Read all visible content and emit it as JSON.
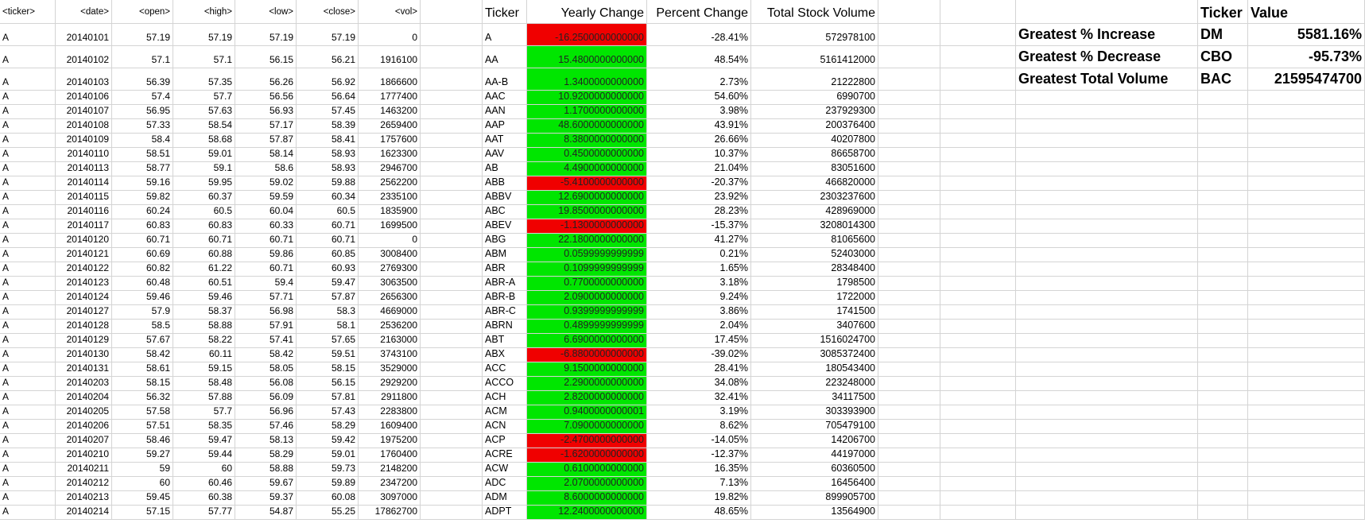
{
  "headers": {
    "ticker": "<ticker>",
    "date": "<date>",
    "open": "<open>",
    "high": "<high>",
    "low": "<low>",
    "close": "<close>",
    "vol": "<vol>",
    "s_ticker": "Ticker",
    "s_yearly": "Yearly Change",
    "s_percent": "Percent Change",
    "s_total": "Total Stock Volume",
    "g_ticker": "Ticker",
    "g_value": "Value"
  },
  "greatest": [
    {
      "label": "Greatest % Increase",
      "ticker": "DM",
      "value": "5581.16%"
    },
    {
      "label": "Greatest % Decrease",
      "ticker": "CBO",
      "value": "-95.73%"
    },
    {
      "label": "Greatest Total Volume",
      "ticker": "BAC",
      "value": "21595474700"
    }
  ],
  "rows": [
    {
      "t": "A",
      "d": "20140101",
      "o": "57.19",
      "h": "57.19",
      "l": "57.19",
      "c": "57.19",
      "v": "0",
      "st": "A",
      "yc": "-16.2500000000000",
      "yc_color": "red",
      "pc": "-28.41%",
      "tv": "572978100"
    },
    {
      "t": "A",
      "d": "20140102",
      "o": "57.1",
      "h": "57.1",
      "l": "56.15",
      "c": "56.21",
      "v": "1916100",
      "st": "AA",
      "yc": "15.4800000000000",
      "yc_color": "green",
      "pc": "48.54%",
      "tv": "5161412000"
    },
    {
      "t": "A",
      "d": "20140103",
      "o": "56.39",
      "h": "57.35",
      "l": "56.26",
      "c": "56.92",
      "v": "1866600",
      "st": "AA-B",
      "yc": "1.3400000000000",
      "yc_color": "green",
      "pc": "2.73%",
      "tv": "21222800"
    },
    {
      "t": "A",
      "d": "20140106",
      "o": "57.4",
      "h": "57.7",
      "l": "56.56",
      "c": "56.64",
      "v": "1777400",
      "st": "AAC",
      "yc": "10.9200000000000",
      "yc_color": "green",
      "pc": "54.60%",
      "tv": "6990700"
    },
    {
      "t": "A",
      "d": "20140107",
      "o": "56.95",
      "h": "57.63",
      "l": "56.93",
      "c": "57.45",
      "v": "1463200",
      "st": "AAN",
      "yc": "1.1700000000000",
      "yc_color": "green",
      "pc": "3.98%",
      "tv": "237929300"
    },
    {
      "t": "A",
      "d": "20140108",
      "o": "57.33",
      "h": "58.54",
      "l": "57.17",
      "c": "58.39",
      "v": "2659400",
      "st": "AAP",
      "yc": "48.6000000000000",
      "yc_color": "green",
      "pc": "43.91%",
      "tv": "200376400"
    },
    {
      "t": "A",
      "d": "20140109",
      "o": "58.4",
      "h": "58.68",
      "l": "57.87",
      "c": "58.41",
      "v": "1757600",
      "st": "AAT",
      "yc": "8.3800000000000",
      "yc_color": "green",
      "pc": "26.66%",
      "tv": "40207800"
    },
    {
      "t": "A",
      "d": "20140110",
      "o": "58.51",
      "h": "59.01",
      "l": "58.14",
      "c": "58.93",
      "v": "1623300",
      "st": "AAV",
      "yc": "0.4500000000000",
      "yc_color": "green",
      "pc": "10.37%",
      "tv": "86658700"
    },
    {
      "t": "A",
      "d": "20140113",
      "o": "58.77",
      "h": "59.1",
      "l": "58.6",
      "c": "58.93",
      "v": "2946700",
      "st": "AB",
      "yc": "4.4900000000000",
      "yc_color": "green",
      "pc": "21.04%",
      "tv": "83051600"
    },
    {
      "t": "A",
      "d": "20140114",
      "o": "59.16",
      "h": "59.95",
      "l": "59.02",
      "c": "59.88",
      "v": "2562200",
      "st": "ABB",
      "yc": "-5.4100000000000",
      "yc_color": "red",
      "pc": "-20.37%",
      "tv": "466820000"
    },
    {
      "t": "A",
      "d": "20140115",
      "o": "59.82",
      "h": "60.37",
      "l": "59.59",
      "c": "60.34",
      "v": "2335100",
      "st": "ABBV",
      "yc": "12.6900000000000",
      "yc_color": "green",
      "pc": "23.92%",
      "tv": "2303237600"
    },
    {
      "t": "A",
      "d": "20140116",
      "o": "60.24",
      "h": "60.5",
      "l": "60.04",
      "c": "60.5",
      "v": "1835900",
      "st": "ABC",
      "yc": "19.8500000000000",
      "yc_color": "green",
      "pc": "28.23%",
      "tv": "428969000"
    },
    {
      "t": "A",
      "d": "20140117",
      "o": "60.83",
      "h": "60.83",
      "l": "60.33",
      "c": "60.71",
      "v": "1699500",
      "st": "ABEV",
      "yc": "-1.1300000000000",
      "yc_color": "red",
      "pc": "-15.37%",
      "tv": "3208014300"
    },
    {
      "t": "A",
      "d": "20140120",
      "o": "60.71",
      "h": "60.71",
      "l": "60.71",
      "c": "60.71",
      "v": "0",
      "st": "ABG",
      "yc": "22.1800000000000",
      "yc_color": "green",
      "pc": "41.27%",
      "tv": "81065600"
    },
    {
      "t": "A",
      "d": "20140121",
      "o": "60.69",
      "h": "60.88",
      "l": "59.86",
      "c": "60.85",
      "v": "3008400",
      "st": "ABM",
      "yc": "0.0599999999999",
      "yc_color": "green",
      "pc": "0.21%",
      "tv": "52403000"
    },
    {
      "t": "A",
      "d": "20140122",
      "o": "60.82",
      "h": "61.22",
      "l": "60.71",
      "c": "60.93",
      "v": "2769300",
      "st": "ABR",
      "yc": "0.1099999999999",
      "yc_color": "green",
      "pc": "1.65%",
      "tv": "28348400"
    },
    {
      "t": "A",
      "d": "20140123",
      "o": "60.48",
      "h": "60.51",
      "l": "59.4",
      "c": "59.47",
      "v": "3063500",
      "st": "ABR-A",
      "yc": "0.7700000000000",
      "yc_color": "green",
      "pc": "3.18%",
      "tv": "1798500"
    },
    {
      "t": "A",
      "d": "20140124",
      "o": "59.46",
      "h": "59.46",
      "l": "57.71",
      "c": "57.87",
      "v": "2656300",
      "st": "ABR-B",
      "yc": "2.0900000000000",
      "yc_color": "green",
      "pc": "9.24%",
      "tv": "1722000"
    },
    {
      "t": "A",
      "d": "20140127",
      "o": "57.9",
      "h": "58.37",
      "l": "56.98",
      "c": "58.3",
      "v": "4669000",
      "st": "ABR-C",
      "yc": "0.9399999999999",
      "yc_color": "green",
      "pc": "3.86%",
      "tv": "1741500"
    },
    {
      "t": "A",
      "d": "20140128",
      "o": "58.5",
      "h": "58.88",
      "l": "57.91",
      "c": "58.1",
      "v": "2536200",
      "st": "ABRN",
      "yc": "0.4899999999999",
      "yc_color": "green",
      "pc": "2.04%",
      "tv": "3407600"
    },
    {
      "t": "A",
      "d": "20140129",
      "o": "57.67",
      "h": "58.22",
      "l": "57.41",
      "c": "57.65",
      "v": "2163000",
      "st": "ABT",
      "yc": "6.6900000000000",
      "yc_color": "green",
      "pc": "17.45%",
      "tv": "1516024700"
    },
    {
      "t": "A",
      "d": "20140130",
      "o": "58.42",
      "h": "60.11",
      "l": "58.42",
      "c": "59.51",
      "v": "3743100",
      "st": "ABX",
      "yc": "-6.8800000000000",
      "yc_color": "red",
      "pc": "-39.02%",
      "tv": "3085372400"
    },
    {
      "t": "A",
      "d": "20140131",
      "o": "58.61",
      "h": "59.15",
      "l": "58.05",
      "c": "58.15",
      "v": "3529000",
      "st": "ACC",
      "yc": "9.1500000000000",
      "yc_color": "green",
      "pc": "28.41%",
      "tv": "180543400"
    },
    {
      "t": "A",
      "d": "20140203",
      "o": "58.15",
      "h": "58.48",
      "l": "56.08",
      "c": "56.15",
      "v": "2929200",
      "st": "ACCO",
      "yc": "2.2900000000000",
      "yc_color": "green",
      "pc": "34.08%",
      "tv": "223248000"
    },
    {
      "t": "A",
      "d": "20140204",
      "o": "56.32",
      "h": "57.88",
      "l": "56.09",
      "c": "57.81",
      "v": "2911800",
      "st": "ACH",
      "yc": "2.8200000000000",
      "yc_color": "green",
      "pc": "32.41%",
      "tv": "34117500"
    },
    {
      "t": "A",
      "d": "20140205",
      "o": "57.58",
      "h": "57.7",
      "l": "56.96",
      "c": "57.43",
      "v": "2283800",
      "st": "ACM",
      "yc": "0.9400000000001",
      "yc_color": "green",
      "pc": "3.19%",
      "tv": "303393900"
    },
    {
      "t": "A",
      "d": "20140206",
      "o": "57.51",
      "h": "58.35",
      "l": "57.46",
      "c": "58.29",
      "v": "1609400",
      "st": "ACN",
      "yc": "7.0900000000000",
      "yc_color": "green",
      "pc": "8.62%",
      "tv": "705479100"
    },
    {
      "t": "A",
      "d": "20140207",
      "o": "58.46",
      "h": "59.47",
      "l": "58.13",
      "c": "59.42",
      "v": "1975200",
      "st": "ACP",
      "yc": "-2.4700000000000",
      "yc_color": "red",
      "pc": "-14.05%",
      "tv": "14206700"
    },
    {
      "t": "A",
      "d": "20140210",
      "o": "59.27",
      "h": "59.44",
      "l": "58.29",
      "c": "59.01",
      "v": "1760400",
      "st": "ACRE",
      "yc": "-1.6200000000000",
      "yc_color": "red",
      "pc": "-12.37%",
      "tv": "44197000"
    },
    {
      "t": "A",
      "d": "20140211",
      "o": "59",
      "h": "60",
      "l": "58.88",
      "c": "59.73",
      "v": "2148200",
      "st": "ACW",
      "yc": "0.6100000000000",
      "yc_color": "green",
      "pc": "16.35%",
      "tv": "60360500"
    },
    {
      "t": "A",
      "d": "20140212",
      "o": "60",
      "h": "60.46",
      "l": "59.67",
      "c": "59.89",
      "v": "2347200",
      "st": "ADC",
      "yc": "2.0700000000000",
      "yc_color": "green",
      "pc": "7.13%",
      "tv": "16456400"
    },
    {
      "t": "A",
      "d": "20140213",
      "o": "59.45",
      "h": "60.38",
      "l": "59.37",
      "c": "60.08",
      "v": "3097000",
      "st": "ADM",
      "yc": "8.6000000000000",
      "yc_color": "green",
      "pc": "19.82%",
      "tv": "899905700"
    },
    {
      "t": "A",
      "d": "20140214",
      "o": "57.15",
      "h": "57.77",
      "l": "54.87",
      "c": "55.25",
      "v": "17862700",
      "st": "ADPT",
      "yc": "12.2400000000000",
      "yc_color": "green",
      "pc": "48.65%",
      "tv": "13564900"
    }
  ]
}
